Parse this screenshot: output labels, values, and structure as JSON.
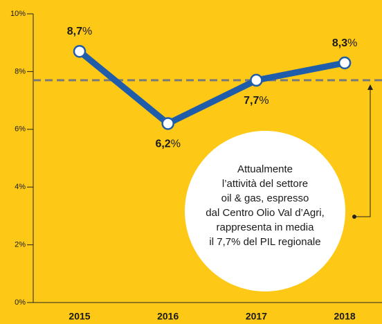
{
  "chart_data": {
    "type": "line",
    "categories": [
      "2015",
      "2016",
      "2017",
      "2018"
    ],
    "series": [
      {
        "color": "#1f5caa",
        "values": [
          8.7,
          6.2,
          7.7,
          8.3
        ],
        "value_labels": [
          "8,7%",
          "6,2%",
          "7,7%",
          "8,3%"
        ]
      }
    ],
    "ylim": [
      0,
      10
    ],
    "yticks": [
      {
        "value": 0,
        "label": "0%"
      },
      {
        "value": 2,
        "label": "2%"
      },
      {
        "value": 4,
        "label": "4%"
      },
      {
        "value": 6,
        "label": "6%"
      },
      {
        "value": 8,
        "label": "8%"
      },
      {
        "value": 10,
        "label": "10%"
      }
    ],
    "reference_line": {
      "value": 7.7,
      "color": "#7a7a7a"
    },
    "annotation": [
      "Attualmente",
      "l’attività del settore",
      "oil & gas, espresso",
      "dal Centro Olio Val d’Agri,",
      "rappresenta in media",
      "il 7,7% del PIL regionale"
    ],
    "background": "#fdc816"
  }
}
